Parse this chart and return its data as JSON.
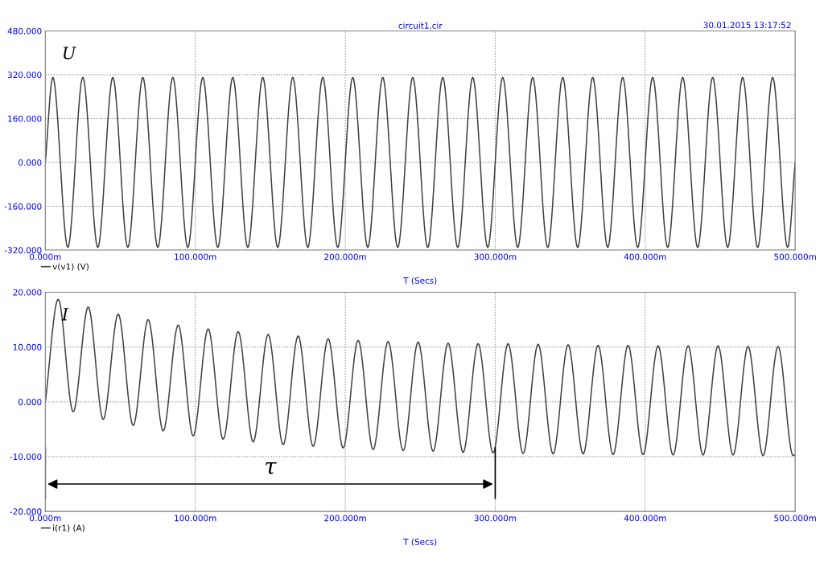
{
  "chart_data": [
    {
      "type": "line",
      "title": "circuit1.cir",
      "ylabel": "U",
      "xlabel": "T (Secs)",
      "annotations": [
        "30.01.2015 13:17:52"
      ],
      "series": [
        {
          "name": "v(v1) (V)",
          "color": "#404040",
          "x": [
            0,
            5,
            15,
            25,
            35,
            45,
            55,
            65,
            75,
            85,
            95,
            105,
            115,
            125,
            135,
            145,
            155,
            165,
            175,
            185,
            195,
            205,
            215,
            225,
            235,
            245,
            255,
            265,
            275,
            285,
            295,
            305,
            315,
            325,
            335,
            345,
            355,
            365,
            375,
            385,
            395,
            405,
            415,
            425,
            435,
            445,
            455,
            465,
            475,
            485,
            495,
            500
          ],
          "values": [
            0,
            310,
            -310,
            310,
            -310,
            310,
            -310,
            310,
            -310,
            310,
            -310,
            310,
            -310,
            310,
            -310,
            310,
            -310,
            310,
            -310,
            310,
            -310,
            310,
            -310,
            310,
            -310,
            310,
            -310,
            310,
            -310,
            310,
            -310,
            310,
            -310,
            310,
            -310,
            310,
            -310,
            310,
            -310,
            310,
            -310,
            310,
            -310,
            310,
            -310,
            310,
            -310,
            310,
            -310,
            310,
            -310,
            0
          ]
        }
      ],
      "xlim": [
        0,
        500
      ],
      "xticks": [
        {
          "value": 0,
          "label": "0.000m"
        },
        {
          "value": 100,
          "label": "100.000m"
        },
        {
          "value": 200,
          "label": "200.000m"
        },
        {
          "value": 300,
          "label": "300.000m"
        },
        {
          "value": 400,
          "label": "400.000m"
        },
        {
          "value": 500,
          "label": "500.000m"
        }
      ],
      "ylim": [
        -320,
        480
      ],
      "yticks": [
        {
          "value": -320,
          "label": "-320.000"
        },
        {
          "value": -160,
          "label": "-160.000"
        },
        {
          "value": 0,
          "label": "0.000"
        },
        {
          "value": 160,
          "label": "160.000"
        },
        {
          "value": 320,
          "label": "320.000"
        },
        {
          "value": 480,
          "label": "480.000"
        }
      ],
      "grid": true,
      "legend": "bottom left",
      "line_style": "solid"
    },
    {
      "type": "line",
      "ylabel": "I",
      "xlabel": "T (Secs)",
      "annotations": [
        "τ"
      ],
      "series": [
        {
          "name": "i(r1) (A)",
          "color": "#404040",
          "x": [
            0,
            8.6,
            18.6,
            28.6,
            38.6,
            48.6,
            58.6,
            68.6,
            78.6,
            88.6,
            98.6,
            108.6,
            118.6,
            128.6,
            138.6,
            148.6,
            158.6,
            168.6,
            178.6,
            188.6,
            198.6,
            208.6,
            218.6,
            228.6,
            238.6,
            248.6,
            258.6,
            268.6,
            278.6,
            288.6,
            298.6,
            308.6,
            318.6,
            328.6,
            338.6,
            348.6,
            358.6,
            368.6,
            378.6,
            388.6,
            398.6,
            408.6,
            418.6,
            428.6,
            438.6,
            448.6,
            458.6,
            468.6,
            478.6,
            488.6,
            498.6,
            500
          ],
          "values": [
            0,
            18.7,
            -1.8,
            17.3,
            -3.2,
            16.0,
            -4.3,
            15.0,
            -5.3,
            14.0,
            -6.2,
            13.3,
            -6.8,
            12.8,
            -7.3,
            12.3,
            -7.8,
            12.0,
            -8.1,
            11.5,
            -8.4,
            11.2,
            -8.7,
            11.0,
            -8.9,
            10.9,
            -9.0,
            10.7,
            -9.2,
            10.6,
            -9.3,
            10.6,
            -9.4,
            10.5,
            -9.5,
            10.4,
            -9.5,
            10.3,
            -9.6,
            10.3,
            -9.6,
            10.2,
            -9.7,
            10.2,
            -9.7,
            10.2,
            -9.7,
            10.1,
            -9.8,
            10.1,
            -9.8,
            -9.6
          ]
        }
      ],
      "xlim": [
        0,
        500
      ],
      "xticks": [
        {
          "value": 0,
          "label": "0.000m"
        },
        {
          "value": 100,
          "label": "100.000m"
        },
        {
          "value": 200,
          "label": "200.000m"
        },
        {
          "value": 300,
          "label": "300.000m"
        },
        {
          "value": 400,
          "label": "400.000m"
        },
        {
          "value": 500,
          "label": "500.000m"
        }
      ],
      "ylim": [
        -20,
        20
      ],
      "yticks": [
        {
          "value": -20,
          "label": "-20.000"
        },
        {
          "value": -10,
          "label": "-10.000"
        },
        {
          "value": 0,
          "label": "0.000"
        },
        {
          "value": 10,
          "label": "10.000"
        },
        {
          "value": 20,
          "label": "20.000"
        }
      ],
      "grid": true,
      "legend": "bottom left",
      "line_style": "solid"
    }
  ]
}
